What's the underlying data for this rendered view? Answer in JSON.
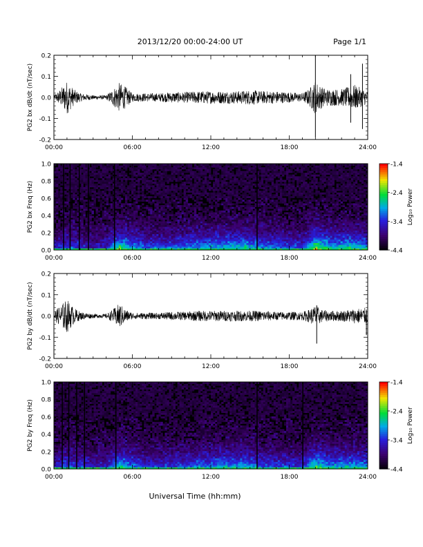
{
  "header": {
    "date_title": "2013/12/20  00:00-24:00 UT",
    "page_label": "Page 1/1"
  },
  "footer": {
    "xlabel": "Universal Time (hh:mm)"
  },
  "chart_data": [
    {
      "type": "line",
      "panel": "bx-waveform",
      "ylabel": "PG2 bx dB/dt (nT/sec)",
      "xlim": [
        0,
        24
      ],
      "ylim": [
        -0.2,
        0.2
      ],
      "x_ticks": [
        "00:00",
        "06:00",
        "12:00",
        "18:00",
        "24:00"
      ],
      "y_ticks": [
        "-0.2",
        "-0.1",
        "0.0",
        "0.1",
        "0.2"
      ],
      "envelope": {
        "x": [
          0,
          0.5,
          1.0,
          1.5,
          2.0,
          3.0,
          4.0,
          4.5,
          5.0,
          5.5,
          6.0,
          7.0,
          8.0,
          9.0,
          10.0,
          11.0,
          12.0,
          13.0,
          14.0,
          15.0,
          16.0,
          17.0,
          18.0,
          19.0,
          19.5,
          20.0,
          20.5,
          21.0,
          22.0,
          23.0,
          24.0
        ],
        "amp": [
          0.01,
          0.04,
          0.08,
          0.04,
          0.02,
          0.01,
          0.01,
          0.04,
          0.07,
          0.05,
          0.02,
          0.02,
          0.02,
          0.025,
          0.025,
          0.03,
          0.03,
          0.03,
          0.03,
          0.035,
          0.03,
          0.03,
          0.025,
          0.02,
          0.04,
          0.08,
          0.05,
          0.04,
          0.04,
          0.06,
          0.03
        ]
      },
      "spikes": [
        {
          "x": 20.0,
          "min": -0.19,
          "max": 0.2
        },
        {
          "x": 23.6,
          "min": -0.15,
          "max": 0.16
        },
        {
          "x": 22.7,
          "min": -0.12,
          "max": 0.11
        }
      ]
    },
    {
      "type": "heatmap",
      "panel": "bx-spectrogram",
      "ylabel": "PG2 bx Freq (Hz)",
      "xlim": [
        0,
        24
      ],
      "ylim": [
        0.0,
        1.0
      ],
      "x_ticks": [
        "00:00",
        "06:00",
        "12:00",
        "18:00",
        "24:00"
      ],
      "y_ticks": [
        "0.0",
        "0.2",
        "0.4",
        "0.6",
        "0.8",
        "1.0"
      ],
      "colorbar": {
        "label": "Log₁₀ Power",
        "min": -4.4,
        "max": -1.4,
        "ticks": [
          "-1.4",
          "-2.4",
          "-3.4",
          "-4.4"
        ]
      },
      "activity": {
        "x": [
          0,
          1,
          2,
          3,
          4,
          5,
          6,
          7,
          8,
          9,
          10,
          11,
          12,
          13,
          14,
          15,
          16,
          17,
          18,
          19,
          20,
          21,
          22,
          23,
          24
        ],
        "level": [
          0.2,
          0.35,
          0.3,
          0.2,
          0.25,
          0.6,
          0.45,
          0.35,
          0.35,
          0.35,
          0.4,
          0.45,
          0.45,
          0.5,
          0.5,
          0.5,
          0.4,
          0.4,
          0.35,
          0.3,
          0.7,
          0.5,
          0.5,
          0.55,
          0.45
        ]
      },
      "dark_lines_x": [
        0.7,
        1.2,
        1.9,
        2.6,
        4.6,
        15.5
      ]
    },
    {
      "type": "line",
      "panel": "by-waveform",
      "ylabel": "PG2 by dB/dt (nT/sec)",
      "xlim": [
        0,
        24
      ],
      "ylim": [
        -0.2,
        0.2
      ],
      "x_ticks": [
        "00:00",
        "06:00",
        "12:00",
        "18:00",
        "24:00"
      ],
      "y_ticks": [
        "-0.2",
        "-0.1",
        "0.0",
        "0.1",
        "0.2"
      ],
      "envelope": {
        "x": [
          0,
          0.5,
          1.0,
          1.5,
          2.0,
          3.0,
          4.0,
          4.5,
          5.0,
          5.5,
          6.0,
          7.0,
          8.0,
          9.0,
          10.0,
          11.0,
          12.0,
          13.0,
          14.0,
          15.0,
          16.0,
          17.0,
          18.0,
          19.0,
          19.5,
          20.0,
          20.5,
          21.0,
          22.0,
          23.0,
          24.0
        ],
        "amp": [
          0.02,
          0.05,
          0.08,
          0.04,
          0.02,
          0.01,
          0.01,
          0.03,
          0.06,
          0.03,
          0.015,
          0.015,
          0.015,
          0.02,
          0.02,
          0.025,
          0.025,
          0.025,
          0.025,
          0.025,
          0.025,
          0.02,
          0.02,
          0.02,
          0.03,
          0.05,
          0.03,
          0.025,
          0.025,
          0.035,
          0.04
        ]
      },
      "spikes": [
        {
          "x": 20.1,
          "min": -0.13,
          "max": 0.05
        },
        {
          "x": 23.9,
          "min": -0.09,
          "max": 0.03
        }
      ]
    },
    {
      "type": "heatmap",
      "panel": "by-spectrogram",
      "ylabel": "PG2 by Freq (Hz)",
      "xlim": [
        0,
        24
      ],
      "ylim": [
        0.0,
        1.0
      ],
      "x_ticks": [
        "00:00",
        "06:00",
        "12:00",
        "18:00",
        "24:00"
      ],
      "y_ticks": [
        "0.0",
        "0.2",
        "0.4",
        "0.6",
        "0.8",
        "1.0"
      ],
      "colorbar": {
        "label": "Log₁₀ Power",
        "min": -4.4,
        "max": -1.4,
        "ticks": [
          "-1.4",
          "-2.4",
          "-3.4",
          "-4.4"
        ]
      },
      "activity": {
        "x": [
          0,
          1,
          2,
          3,
          4,
          5,
          6,
          7,
          8,
          9,
          10,
          11,
          12,
          13,
          14,
          15,
          16,
          17,
          18,
          19,
          20,
          21,
          22,
          23,
          24
        ],
        "level": [
          0.25,
          0.35,
          0.3,
          0.25,
          0.25,
          0.55,
          0.4,
          0.3,
          0.3,
          0.3,
          0.35,
          0.4,
          0.4,
          0.45,
          0.45,
          0.45,
          0.35,
          0.35,
          0.3,
          0.3,
          0.6,
          0.45,
          0.45,
          0.5,
          0.4
        ]
      },
      "dark_lines_x": [
        0.6,
        1.1,
        1.7,
        2.3,
        4.7,
        15.5,
        19.0
      ]
    }
  ]
}
